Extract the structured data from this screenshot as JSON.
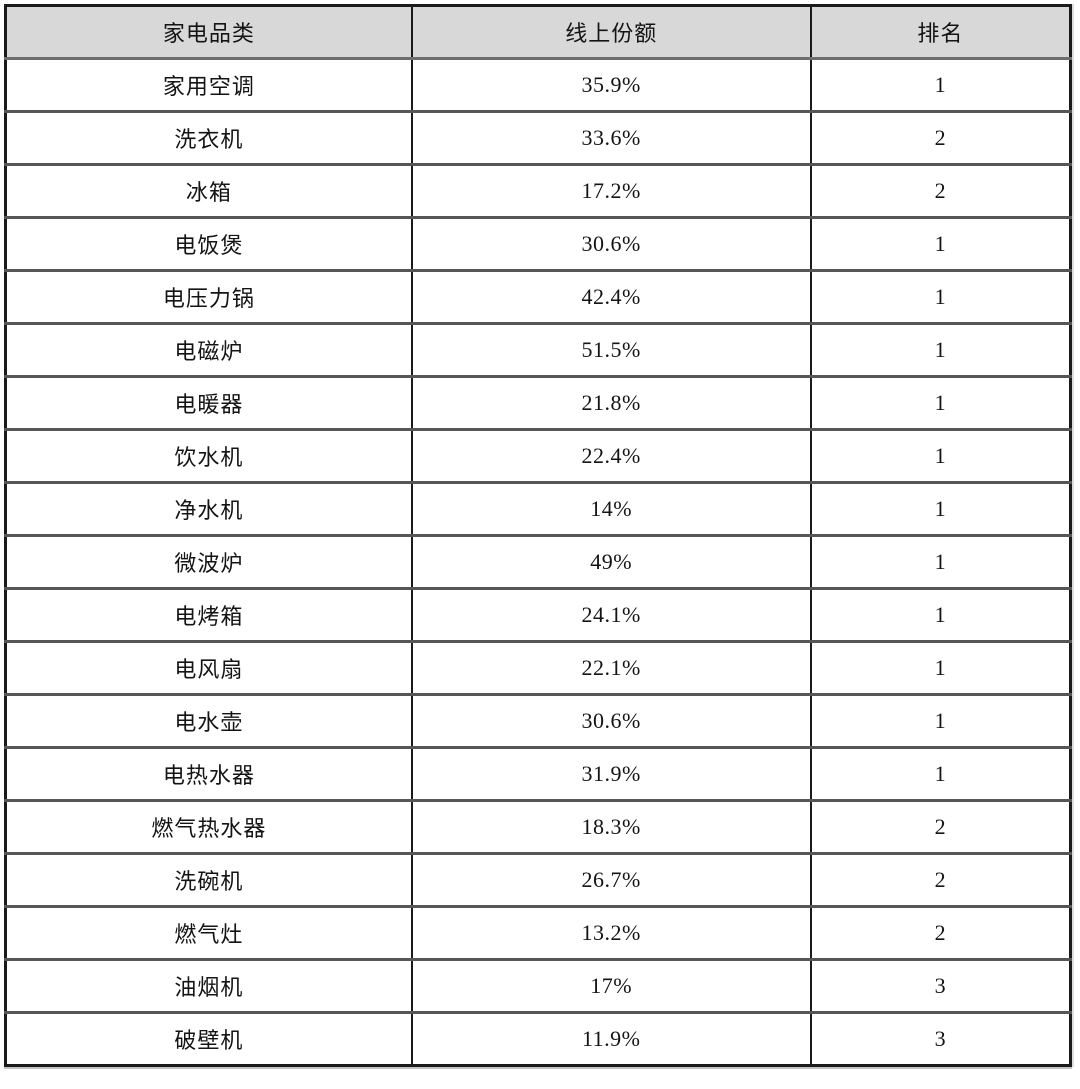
{
  "table": {
    "headers": {
      "category": "家电品类",
      "share": "线上份额",
      "rank": "排名"
    },
    "rows": [
      {
        "category": "家用空调",
        "share": "35.9%",
        "rank": "1"
      },
      {
        "category": "洗衣机",
        "share": "33.6%",
        "rank": "2"
      },
      {
        "category": "冰箱",
        "share": "17.2%",
        "rank": "2"
      },
      {
        "category": "电饭煲",
        "share": "30.6%",
        "rank": "1"
      },
      {
        "category": "电压力锅",
        "share": "42.4%",
        "rank": "1"
      },
      {
        "category": "电磁炉",
        "share": "51.5%",
        "rank": "1"
      },
      {
        "category": "电暖器",
        "share": "21.8%",
        "rank": "1"
      },
      {
        "category": "饮水机",
        "share": "22.4%",
        "rank": "1"
      },
      {
        "category": "净水机",
        "share": "14%",
        "rank": "1"
      },
      {
        "category": "微波炉",
        "share": "49%",
        "rank": "1"
      },
      {
        "category": "电烤箱",
        "share": "24.1%",
        "rank": "1"
      },
      {
        "category": "电风扇",
        "share": "22.1%",
        "rank": "1"
      },
      {
        "category": "电水壶",
        "share": "30.6%",
        "rank": "1"
      },
      {
        "category": "电热水器",
        "share": "31.9%",
        "rank": "1"
      },
      {
        "category": "燃气热水器",
        "share": "18.3%",
        "rank": "2"
      },
      {
        "category": "洗碗机",
        "share": "26.7%",
        "rank": "2"
      },
      {
        "category": "燃气灶",
        "share": "13.2%",
        "rank": "2"
      },
      {
        "category": "油烟机",
        "share": "17%",
        "rank": "3"
      },
      {
        "category": "破壁机",
        "share": "11.9%",
        "rank": "3"
      }
    ]
  },
  "colors": {
    "header_background": "#d8d8d8",
    "border_dark": "#1a1a1a",
    "border_gray": "#565656",
    "text": "#141414"
  }
}
